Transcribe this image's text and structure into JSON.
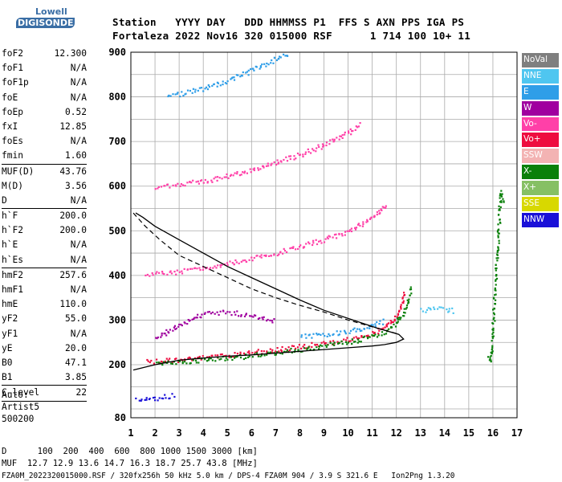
{
  "logo": {
    "line1": "Lowell",
    "line2": "DIGISONDE"
  },
  "header": {
    "row1": "Station   YYYY DAY   DDD HHMMSS P1  FFS S AXN PPS IGA PS",
    "row2": "Fortaleza 2022 Nov16 320 015000 RSF      1 714 100 10+ 11"
  },
  "params": {
    "group1": [
      {
        "k": "foF2",
        "v": "12.300"
      },
      {
        "k": "foF1",
        "v": "N/A"
      },
      {
        "k": "foF1p",
        "v": "N/A"
      },
      {
        "k": "foE",
        "v": "N/A"
      },
      {
        "k": "foEp",
        "v": "0.52"
      },
      {
        "k": "fxI",
        "v": "12.85"
      },
      {
        "k": "foEs",
        "v": "N/A"
      },
      {
        "k": "fmin",
        "v": "1.60"
      }
    ],
    "group2": [
      {
        "k": "MUF(D)",
        "v": "43.76"
      },
      {
        "k": "M(D)",
        "v": "3.56"
      },
      {
        "k": "D",
        "v": "N/A"
      }
    ],
    "group3": [
      {
        "k": "h`F",
        "v": "200.0"
      },
      {
        "k": "h`F2",
        "v": "200.0"
      },
      {
        "k": "h`E",
        "v": "N/A"
      },
      {
        "k": "h`Es",
        "v": "N/A"
      }
    ],
    "group4": [
      {
        "k": "hmF2",
        "v": "257.6"
      },
      {
        "k": "hmF1",
        "v": "N/A"
      },
      {
        "k": "hmE",
        "v": "110.0"
      },
      {
        "k": "yF2",
        "v": "55.0"
      },
      {
        "k": "yF1",
        "v": "N/A"
      },
      {
        "k": "yE",
        "v": "20.0"
      },
      {
        "k": "B0",
        "v": "47.1"
      },
      {
        "k": "B1",
        "v": "3.85"
      }
    ],
    "group5": [
      {
        "k": "C-level",
        "v": "22"
      }
    ]
  },
  "auto": {
    "line1": "Auto:",
    "line2": "Artist5",
    "line3": "500200"
  },
  "legend": [
    {
      "label": "NoVal",
      "color": "#7f7f7f"
    },
    {
      "label": "NNE",
      "color": "#4fc6f0"
    },
    {
      "label": "E",
      "color": "#2f9ee8"
    },
    {
      "label": "W",
      "color": "#a0009f"
    },
    {
      "label": "Vo-",
      "color": "#ff40a8"
    },
    {
      "label": "Vo+",
      "color": "#ee0d3f"
    },
    {
      "label": "SSW",
      "color": "#f3b3b3"
    },
    {
      "label": "X-",
      "color": "#0a800a"
    },
    {
      "label": "X+",
      "color": "#86c064"
    },
    {
      "label": "SSE",
      "color": "#d8d800"
    },
    {
      "label": "NNW",
      "color": "#1a10d8"
    }
  ],
  "footer": {
    "line1": "D      100  200  400  600  800 1000 1500 3000 [km]",
    "line2": "MUF  12.7 12.9 13.6 14.7 16.3 18.7 25.7 43.8 [MHz]",
    "line3": "FZA0M_2022320015000.RSF / 320fx256h 50 kHz 5.0 km / DPS-4 FZA0M 904 / 3.9 S 321.6 E   Ion2Png 1.3.20"
  },
  "chart_data": {
    "type": "scatter",
    "title": "",
    "xlabel": "",
    "ylabel": "",
    "xlim": [
      1,
      17
    ],
    "ylim": [
      80,
      900
    ],
    "xticks": [
      1,
      2,
      3,
      4,
      5,
      6,
      7,
      8,
      9,
      10,
      11,
      12,
      13,
      14,
      15,
      16,
      17
    ],
    "yticks": [
      80,
      200,
      300,
      400,
      500,
      600,
      700,
      800,
      900
    ],
    "grid": true,
    "legend_position": "right",
    "series": [
      {
        "mode": "Vo+",
        "trace": "first-hop F2",
        "x": [
          1.6,
          2,
          3,
          4,
          5,
          6,
          7,
          8,
          9,
          10,
          10.5,
          11,
          11.5,
          12,
          12.2,
          12.3
        ],
        "y": [
          208,
          210,
          213,
          217,
          222,
          228,
          235,
          242,
          250,
          258,
          264,
          272,
          285,
          310,
          340,
          370
        ]
      },
      {
        "mode": "X-",
        "trace": "first-hop F2",
        "x": [
          2,
          3,
          4,
          5,
          6,
          7,
          8,
          9,
          10,
          11,
          11.5,
          12,
          12.4,
          12.6
        ],
        "y": [
          205,
          208,
          212,
          216,
          222,
          229,
          236,
          244,
          252,
          265,
          275,
          295,
          330,
          380
        ]
      },
      {
        "mode": "E",
        "trace": "oblique",
        "x": [
          8,
          9,
          10,
          10.5,
          11,
          11.5
        ],
        "y": [
          265,
          270,
          276,
          282,
          290,
          300
        ]
      },
      {
        "mode": "NNE",
        "trace": "oblique",
        "x": [
          13,
          13.5,
          14,
          14.4
        ],
        "y": [
          322,
          326,
          325,
          322
        ]
      },
      {
        "mode": "W",
        "trace": "diffuse",
        "x": [
          2,
          3,
          4,
          5,
          6,
          7
        ],
        "y": [
          260,
          290,
          315,
          320,
          310,
          300
        ]
      },
      {
        "mode": "Vo-",
        "trace": "second-hop F2",
        "x": [
          1.6,
          2,
          3,
          4,
          5,
          6,
          7,
          8,
          9,
          10,
          11,
          11.6
        ],
        "y": [
          404,
          406,
          410,
          418,
          428,
          440,
          452,
          466,
          482,
          500,
          530,
          560
        ]
      },
      {
        "mode": "Vo-",
        "trace": "third-hop F2",
        "x": [
          2,
          3,
          4,
          5,
          6,
          7,
          8,
          9,
          10,
          10.5
        ],
        "y": [
          601,
          605,
          612,
          624,
          638,
          655,
          672,
          694,
          720,
          740
        ]
      },
      {
        "mode": "E",
        "trace": "fourth-hop F2",
        "x": [
          2.5,
          3,
          4,
          5,
          6,
          7.5
        ],
        "y": [
          803,
          808,
          820,
          838,
          860,
          900
        ]
      },
      {
        "mode": "NNW",
        "trace": "low echoes",
        "x": [
          1.2,
          1.5,
          2,
          2.5,
          2.8
        ],
        "y": [
          122,
          123,
          126,
          130,
          132
        ]
      },
      {
        "mode": "X-",
        "trace": "isolated",
        "x": [
          15.8,
          15.9,
          16.3,
          16.4
        ],
        "y": [
          220,
          210,
          590,
          560
        ]
      }
    ],
    "profile_curve": {
      "x": [
        1.1,
        2,
        3,
        4,
        5,
        6,
        7,
        8,
        9,
        10,
        11,
        11.5,
        12,
        12.3,
        12.1,
        11.2,
        10.2,
        9,
        8,
        7,
        6,
        5,
        4,
        3,
        2,
        1.5,
        1.2
      ],
      "y": [
        188,
        200,
        210,
        215,
        219,
        222,
        226,
        230,
        234,
        238,
        242,
        245,
        250,
        257.6,
        268,
        282,
        300,
        322,
        345,
        370,
        395,
        420,
        450,
        480,
        510,
        530,
        540
      ]
    },
    "profile_curve_upper": {
      "x": [
        1.1,
        1.6,
        2.2,
        3,
        4,
        5,
        6,
        7,
        8,
        9,
        10,
        11,
        12
      ],
      "y": [
        540,
        510,
        480,
        445,
        420,
        395,
        370,
        350,
        333,
        318,
        300,
        285,
        270
      ]
    }
  }
}
